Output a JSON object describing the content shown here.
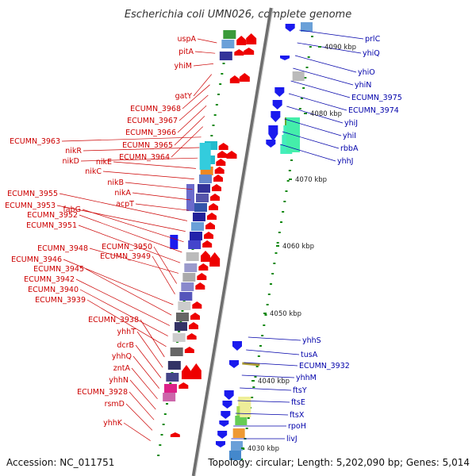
{
  "title": "Escherichia coli UMN026, complete genome",
  "footer": {
    "accession": "Accession: NC_011751",
    "summary": "Topology: circular; Length: 5,202,090 bp; Genes: 5,014"
  },
  "colors": {
    "forward_gene": "#ee0000",
    "reverse_gene": "#1a1aee",
    "left_label": "#cc0000",
    "right_label": "#0000aa",
    "backbone": "#888888",
    "tick_mark": "#118811"
  },
  "scale_ticks": [
    "4090 kbp",
    "4080 kbp",
    "4070 kbp",
    "4060 kbp",
    "4050 kbp",
    "4040 kbp",
    "4030 kbp"
  ],
  "left_labels": [
    "uspA",
    "pitA",
    "yhiM",
    "gatY",
    "ECUMN_3968",
    "ECUMN_3967",
    "ECUMN_3966",
    "ECUMN_3965",
    "ECUMN_3964",
    "ECUMN_3963",
    "nikR",
    "nikD",
    "nikE",
    "nikC",
    "nikB",
    "nikA",
    "acpT",
    "ECUMN_3955",
    "ECUMN_3953",
    "fabG",
    "ECUMN_3952",
    "ECUMN_3951",
    "ECUMN_3948",
    "ECUMN_3950",
    "ECUMN_3949",
    "ECUMN_3946",
    "ECUMN_3945",
    "ECUMN_3942",
    "ECUMN_3940",
    "ECUMN_3939",
    "ECUMN_3938",
    "yhhT",
    "dcrB",
    "yhhQ",
    "zntA",
    "yhhN",
    "ECUMN_3928",
    "rsmD",
    "yhhK"
  ],
  "right_labels": [
    "prlC",
    "yhiQ",
    "yhiO",
    "yhiN",
    "ECUMN_3975",
    "ECUMN_3974",
    "yhiJ",
    "yhiI",
    "rbbA",
    "yhhJ",
    "yhhS",
    "tusA",
    "ECUMN_3932",
    "yhhM",
    "ftsY",
    "ftsE",
    "ftsX",
    "rpoH",
    "livJ"
  ]
}
